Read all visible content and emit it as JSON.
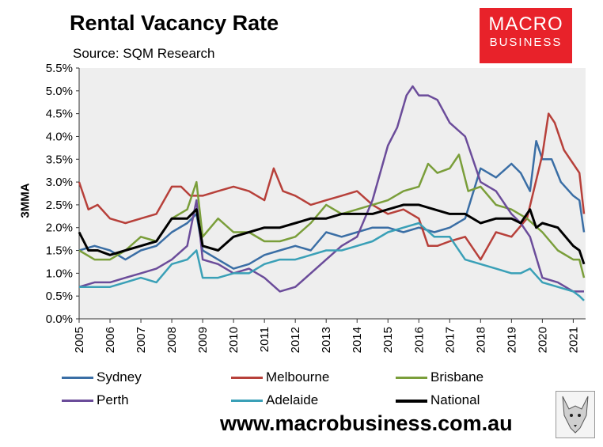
{
  "header": {
    "title": "Rental Vacancy Rate",
    "subtitle": "Source: SQM Research"
  },
  "logo": {
    "line1": "MACRO",
    "line2": "BUSINESS",
    "color": "#e8222a"
  },
  "footer": {
    "url": "www.macrobusiness.com.au"
  },
  "chart_data": {
    "type": "line",
    "title": "Rental Vacancy Rate",
    "ylabel": "3MMA",
    "xlabel": "",
    "ylim": [
      0,
      5.5
    ],
    "xlim": [
      2005,
      2021.4
    ],
    "yticks": [
      "0.0%",
      "0.5%",
      "1.0%",
      "1.5%",
      "2.0%",
      "2.5%",
      "3.0%",
      "3.5%",
      "4.0%",
      "4.5%",
      "5.0%",
      "5.5%"
    ],
    "xticks": [
      "2005",
      "2006",
      "2007",
      "2008",
      "2009",
      "2010",
      "2011",
      "2012",
      "2013",
      "2014",
      "2015",
      "2016",
      "2017",
      "2018",
      "2019",
      "2020",
      "2021"
    ],
    "grid": false,
    "legend": "bottom",
    "series": [
      {
        "name": "Sydney",
        "color": "#3a6ea5",
        "x": [
          2005,
          2005.5,
          2006,
          2006.5,
          2007,
          2007.5,
          2008,
          2008.5,
          2008.8,
          2009,
          2009.5,
          2010,
          2010.5,
          2011,
          2011.5,
          2012,
          2012.5,
          2013,
          2013.5,
          2014,
          2014.5,
          2015,
          2015.5,
          2016,
          2016.5,
          2017,
          2017.5,
          2018,
          2018.5,
          2019,
          2019.3,
          2019.6,
          2019.8,
          2020,
          2020.3,
          2020.6,
          2021,
          2021.2,
          2021.35
        ],
        "y": [
          1.5,
          1.6,
          1.5,
          1.3,
          1.5,
          1.6,
          1.9,
          2.1,
          2.3,
          1.5,
          1.3,
          1.1,
          1.2,
          1.4,
          1.5,
          1.6,
          1.5,
          1.9,
          1.8,
          1.9,
          2.0,
          2.0,
          1.9,
          2.0,
          1.9,
          2.0,
          2.2,
          3.3,
          3.1,
          3.4,
          3.2,
          2.8,
          3.9,
          3.5,
          3.5,
          3.0,
          2.7,
          2.6,
          1.9
        ]
      },
      {
        "name": "Melbourne",
        "color": "#b7403a",
        "x": [
          2005,
          2005.3,
          2005.6,
          2006,
          2006.5,
          2007,
          2007.5,
          2008,
          2008.3,
          2008.6,
          2009,
          2009.5,
          2010,
          2010.5,
          2011,
          2011.3,
          2011.6,
          2012,
          2012.5,
          2013,
          2013.5,
          2014,
          2014.5,
          2015,
          2015.5,
          2016,
          2016.3,
          2016.6,
          2017,
          2017.5,
          2018,
          2018.5,
          2019,
          2019.5,
          2020,
          2020.2,
          2020.4,
          2020.7,
          2021,
          2021.2,
          2021.35
        ],
        "y": [
          3.0,
          2.4,
          2.5,
          2.2,
          2.1,
          2.2,
          2.3,
          2.9,
          2.9,
          2.7,
          2.7,
          2.8,
          2.9,
          2.8,
          2.6,
          3.3,
          2.8,
          2.7,
          2.5,
          2.6,
          2.7,
          2.8,
          2.5,
          2.3,
          2.4,
          2.2,
          1.6,
          1.6,
          1.7,
          1.8,
          1.3,
          1.9,
          1.8,
          2.2,
          3.6,
          4.5,
          4.3,
          3.7,
          3.4,
          3.2,
          2.3
        ]
      },
      {
        "name": "Brisbane",
        "color": "#7a9e3a",
        "x": [
          2005,
          2005.5,
          2006,
          2006.5,
          2007,
          2007.5,
          2008,
          2008.5,
          2008.8,
          2009,
          2009.5,
          2010,
          2010.5,
          2011,
          2011.5,
          2012,
          2012.5,
          2013,
          2013.5,
          2014,
          2014.5,
          2015,
          2015.5,
          2016,
          2016.3,
          2016.6,
          2017,
          2017.3,
          2017.6,
          2018,
          2018.5,
          2019,
          2019.5,
          2020,
          2020.5,
          2021,
          2021.2,
          2021.35
        ],
        "y": [
          1.5,
          1.3,
          1.3,
          1.5,
          1.8,
          1.7,
          2.2,
          2.4,
          3.0,
          1.8,
          2.2,
          1.9,
          1.9,
          1.7,
          1.7,
          1.8,
          2.1,
          2.5,
          2.3,
          2.4,
          2.5,
          2.6,
          2.8,
          2.9,
          3.4,
          3.2,
          3.3,
          3.6,
          2.8,
          2.9,
          2.5,
          2.4,
          2.2,
          1.9,
          1.5,
          1.3,
          1.3,
          0.9
        ]
      },
      {
        "name": "Perth",
        "color": "#6b4c9a",
        "x": [
          2005,
          2005.5,
          2006,
          2006.5,
          2007,
          2007.5,
          2008,
          2008.5,
          2008.8,
          2009,
          2009.5,
          2010,
          2010.5,
          2011,
          2011.5,
          2012,
          2012.5,
          2013,
          2013.5,
          2014,
          2014.5,
          2015,
          2015.3,
          2015.6,
          2015.8,
          2016,
          2016.3,
          2016.6,
          2017,
          2017.5,
          2018,
          2018.5,
          2019,
          2019.3,
          2019.6,
          2020,
          2020.5,
          2021,
          2021.35
        ],
        "y": [
          0.7,
          0.8,
          0.8,
          0.9,
          1.0,
          1.1,
          1.3,
          1.6,
          2.6,
          1.3,
          1.2,
          1.0,
          1.1,
          0.9,
          0.6,
          0.7,
          1.0,
          1.3,
          1.6,
          1.8,
          2.6,
          3.8,
          4.2,
          4.9,
          5.1,
          4.9,
          4.9,
          4.8,
          4.3,
          4.0,
          3.0,
          2.8,
          2.3,
          2.1,
          1.8,
          0.9,
          0.8,
          0.6,
          0.6
        ]
      },
      {
        "name": "Adelaide",
        "color": "#3aa0b7",
        "x": [
          2005,
          2005.5,
          2006,
          2006.5,
          2007,
          2007.5,
          2008,
          2008.5,
          2008.8,
          2009,
          2009.5,
          2010,
          2010.5,
          2011,
          2011.5,
          2012,
          2012.5,
          2013,
          2013.5,
          2014,
          2014.5,
          2015,
          2015.5,
          2016,
          2016.5,
          2017,
          2017.5,
          2018,
          2018.5,
          2019,
          2019.3,
          2019.6,
          2020,
          2020.5,
          2021,
          2021.2,
          2021.35
        ],
        "y": [
          0.7,
          0.7,
          0.7,
          0.8,
          0.9,
          0.8,
          1.2,
          1.3,
          1.5,
          0.9,
          0.9,
          1.0,
          1.0,
          1.2,
          1.3,
          1.3,
          1.4,
          1.5,
          1.5,
          1.6,
          1.7,
          1.9,
          2.0,
          2.1,
          1.8,
          1.8,
          1.3,
          1.2,
          1.1,
          1.0,
          1.0,
          1.1,
          0.8,
          0.7,
          0.6,
          0.5,
          0.4
        ]
      },
      {
        "name": "National",
        "color": "#000000",
        "x": [
          2005,
          2005.3,
          2005.6,
          2006,
          2006.5,
          2007,
          2007.5,
          2008,
          2008.5,
          2008.8,
          2009,
          2009.5,
          2010,
          2010.5,
          2011,
          2011.5,
          2012,
          2012.5,
          2013,
          2013.5,
          2014,
          2014.5,
          2015,
          2015.5,
          2016,
          2016.5,
          2017,
          2017.5,
          2018,
          2018.5,
          2019,
          2019.3,
          2019.6,
          2019.8,
          2020,
          2020.5,
          2021,
          2021.2,
          2021.35
        ],
        "y": [
          1.9,
          1.5,
          1.5,
          1.4,
          1.5,
          1.6,
          1.7,
          2.2,
          2.2,
          2.4,
          1.6,
          1.5,
          1.8,
          1.9,
          2.0,
          2.0,
          2.1,
          2.2,
          2.2,
          2.3,
          2.3,
          2.3,
          2.4,
          2.5,
          2.5,
          2.4,
          2.3,
          2.3,
          2.1,
          2.2,
          2.2,
          2.1,
          2.4,
          2.0,
          2.1,
          2.0,
          1.6,
          1.5,
          1.2
        ]
      }
    ]
  }
}
